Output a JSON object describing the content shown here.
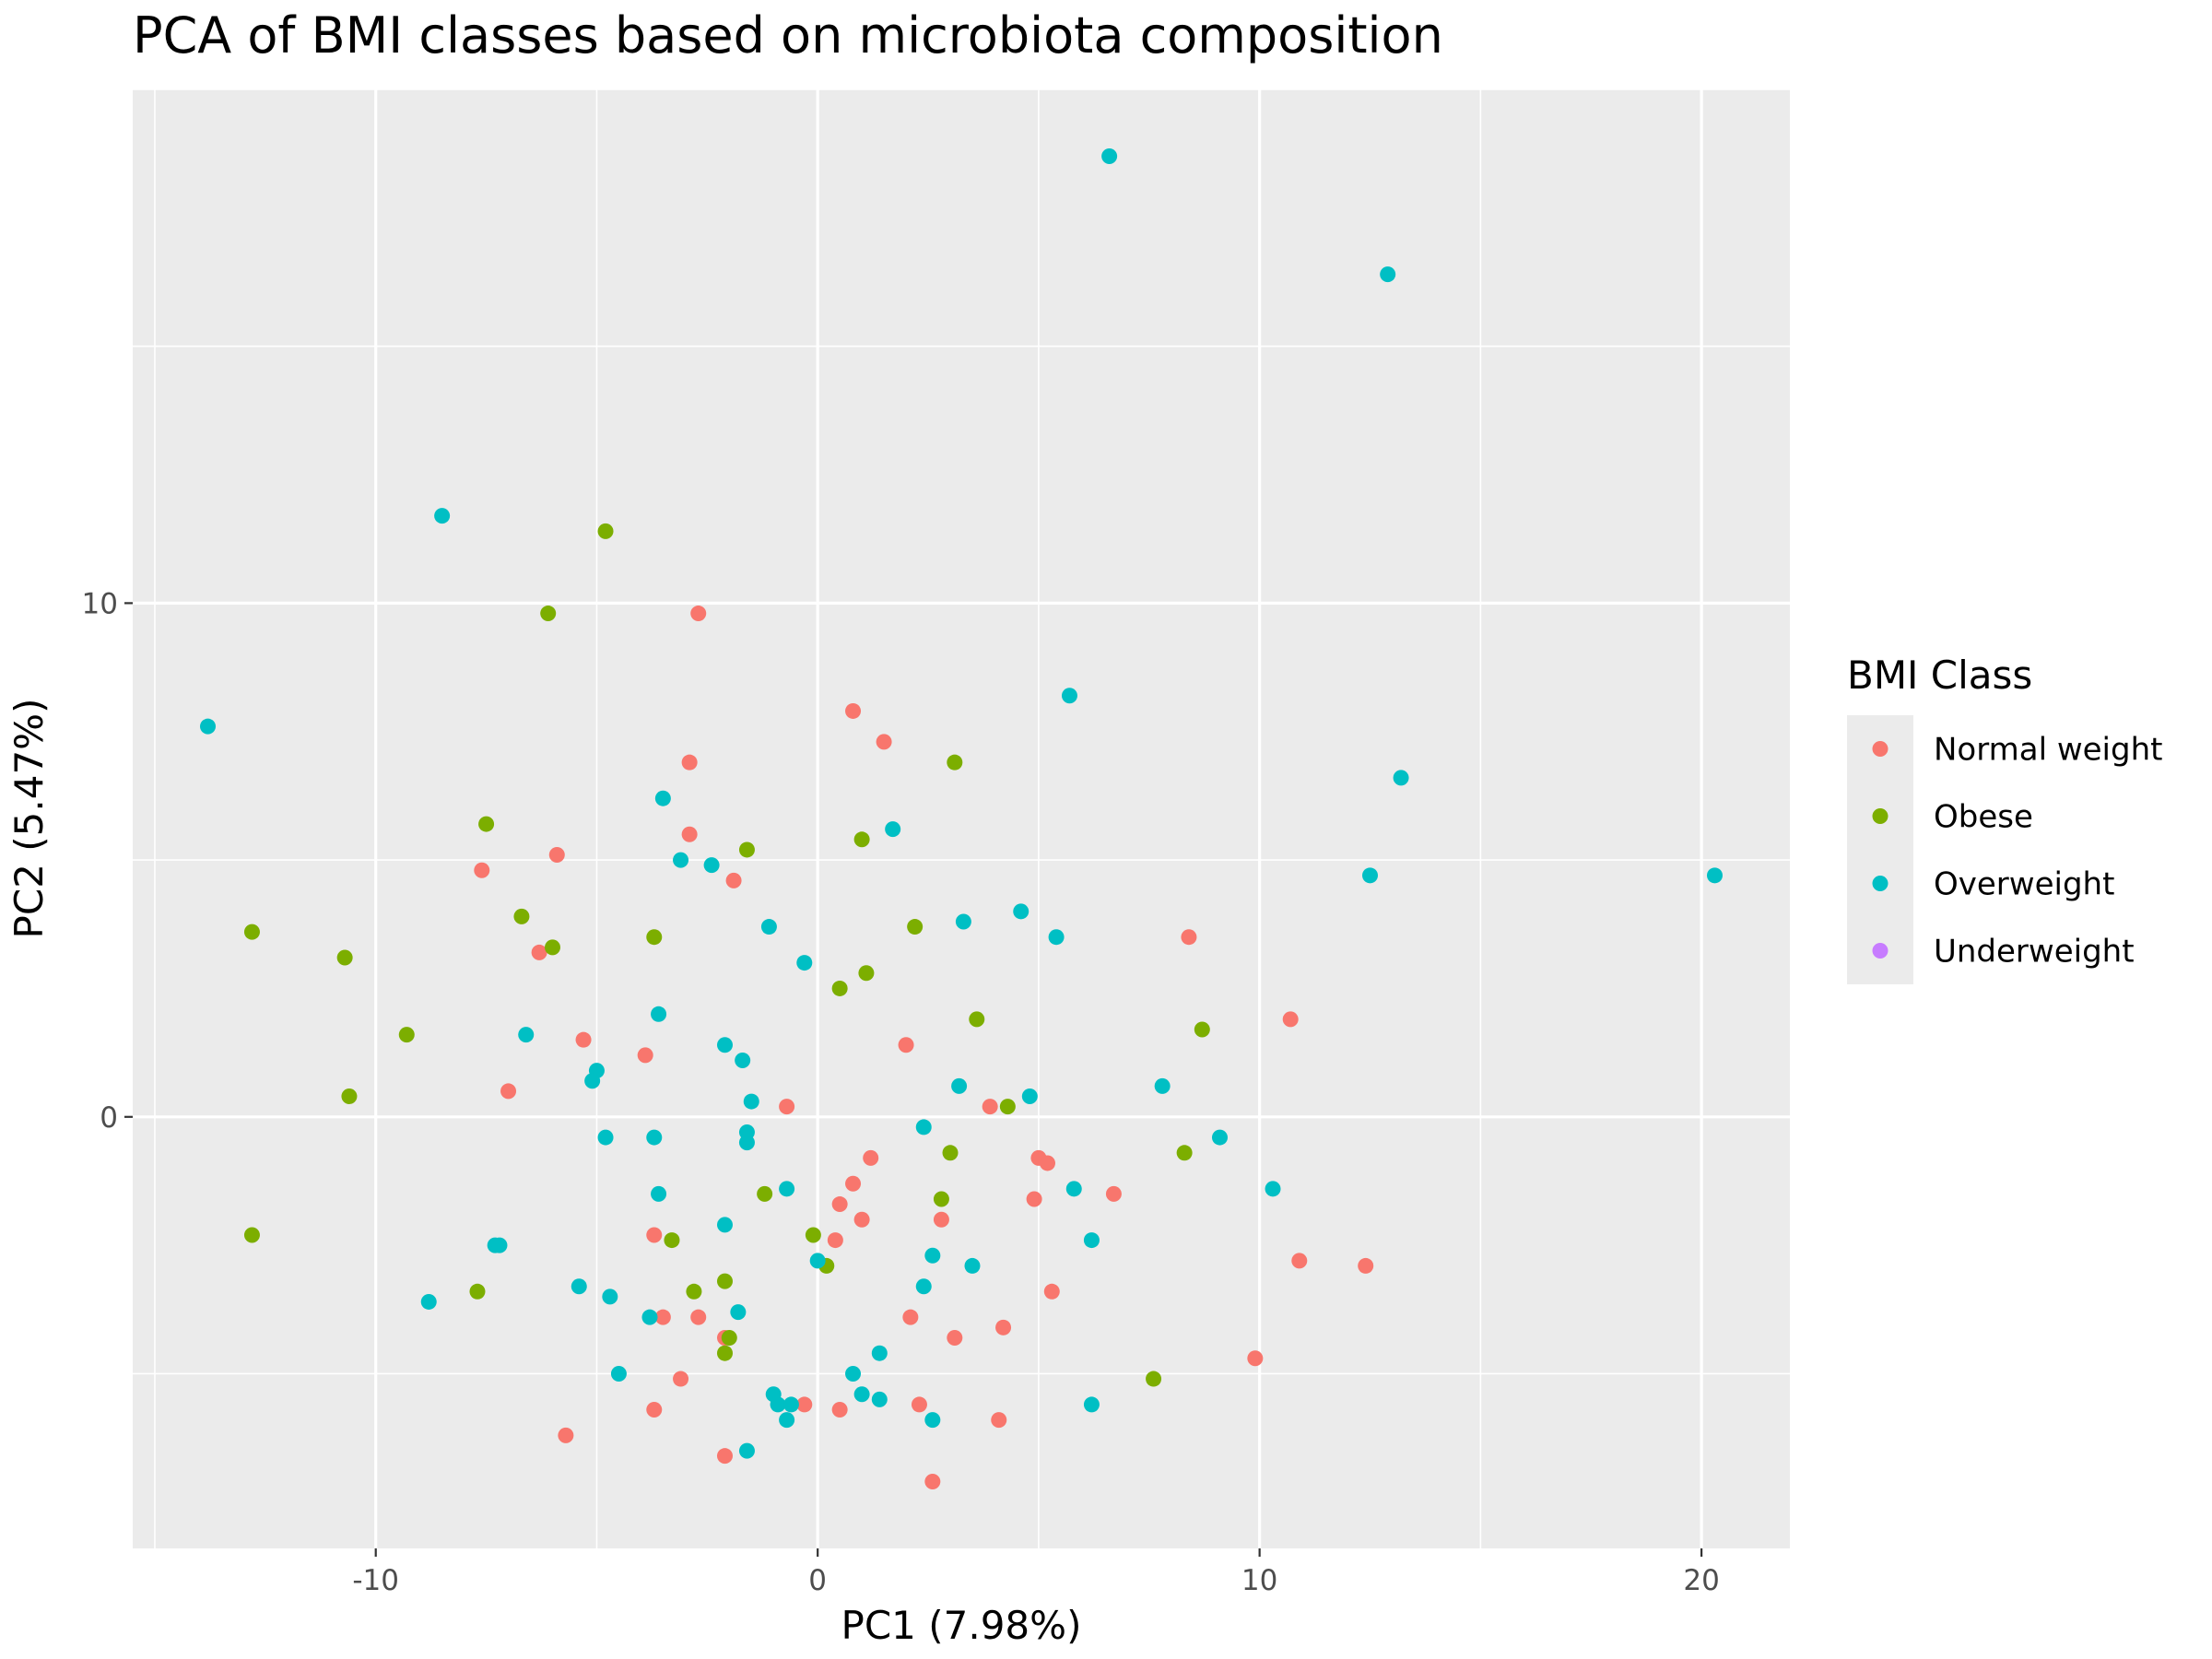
{
  "chart_data": {
    "type": "scatter",
    "title": "PCA of BMI classes based on microbiota composition",
    "xlabel": "PC1 (7.98%)",
    "ylabel": "PC2 (5.47%)",
    "xlim": [
      -15.5,
      22
    ],
    "ylim": [
      -8.4,
      20
    ],
    "x_ticks": [
      -10,
      0,
      10,
      20
    ],
    "y_ticks": [
      0,
      10
    ],
    "grid": true,
    "legend": {
      "title": "BMI Class",
      "position": "right"
    },
    "series": [
      {
        "name": "Normal weight",
        "color": "#F8766D",
        "points": [
          [
            -2.7,
            9.8
          ],
          [
            0.8,
            7.9
          ],
          [
            1.5,
            7.3
          ],
          [
            -2.9,
            6.9
          ],
          [
            -2.9,
            5.5
          ],
          [
            -5.9,
            5.1
          ],
          [
            -7.6,
            4.8
          ],
          [
            -1.9,
            4.6
          ],
          [
            -6.3,
            3.2
          ],
          [
            8.4,
            3.5
          ],
          [
            10.7,
            1.9
          ],
          [
            -5.3,
            1.5
          ],
          [
            -3.9,
            1.2
          ],
          [
            2.0,
            1.4
          ],
          [
            -7.0,
            0.5
          ],
          [
            -0.7,
            0.2
          ],
          [
            3.9,
            0.2
          ],
          [
            5.0,
            -0.8
          ],
          [
            5.2,
            -0.9
          ],
          [
            1.2,
            -0.8
          ],
          [
            0.8,
            -1.3
          ],
          [
            6.7,
            -1.5
          ],
          [
            4.9,
            -1.6
          ],
          [
            0.5,
            -1.7
          ],
          [
            1.0,
            -2.0
          ],
          [
            2.8,
            -2.0
          ],
          [
            0.4,
            -2.4
          ],
          [
            -3.7,
            -2.3
          ],
          [
            10.9,
            -2.8
          ],
          [
            12.4,
            -2.9
          ],
          [
            5.3,
            -3.4
          ],
          [
            -2.7,
            -3.9
          ],
          [
            -3.5,
            -3.9
          ],
          [
            2.1,
            -3.9
          ],
          [
            4.2,
            -4.1
          ],
          [
            -2.1,
            -4.3
          ],
          [
            3.1,
            -4.3
          ],
          [
            9.9,
            -4.7
          ],
          [
            -3.1,
            -5.1
          ],
          [
            -3.7,
            -5.7
          ],
          [
            -0.3,
            -5.6
          ],
          [
            0.5,
            -5.7
          ],
          [
            2.3,
            -5.6
          ],
          [
            4.1,
            -5.9
          ],
          [
            -5.7,
            -6.2
          ],
          [
            -2.1,
            -6.6
          ],
          [
            2.6,
            -7.1
          ]
        ]
      },
      {
        "name": "Obese",
        "color": "#7CAE00",
        "points": [
          [
            -4.8,
            11.4
          ],
          [
            -6.1,
            9.8
          ],
          [
            3.1,
            6.9
          ],
          [
            -7.5,
            5.7
          ],
          [
            1.0,
            5.4
          ],
          [
            -1.6,
            5.2
          ],
          [
            -12.8,
            3.6
          ],
          [
            -6.7,
            3.9
          ],
          [
            -3.7,
            3.5
          ],
          [
            2.2,
            3.7
          ],
          [
            -6.0,
            3.3
          ],
          [
            -10.7,
            3.1
          ],
          [
            1.1,
            2.8
          ],
          [
            0.5,
            2.5
          ],
          [
            3.6,
            1.9
          ],
          [
            8.7,
            1.7
          ],
          [
            -9.3,
            1.6
          ],
          [
            -10.6,
            0.4
          ],
          [
            4.3,
            0.2
          ],
          [
            3.0,
            -0.7
          ],
          [
            8.3,
            -0.7
          ],
          [
            -1.2,
            -1.5
          ],
          [
            2.8,
            -1.6
          ],
          [
            -0.1,
            -2.3
          ],
          [
            -12.8,
            -2.3
          ],
          [
            -3.3,
            -2.4
          ],
          [
            0.2,
            -2.9
          ],
          [
            -7.7,
            -3.4
          ],
          [
            -2.8,
            -3.4
          ],
          [
            -2.1,
            -3.2
          ],
          [
            -2.0,
            -4.3
          ],
          [
            -2.1,
            -4.6
          ],
          [
            7.6,
            -5.1
          ]
        ]
      },
      {
        "name": "Overweight",
        "color": "#00BFC4",
        "points": [
          [
            6.6,
            18.7
          ],
          [
            12.9,
            16.4
          ],
          [
            -8.5,
            11.7
          ],
          [
            -13.8,
            7.6
          ],
          [
            5.7,
            8.2
          ],
          [
            13.2,
            6.6
          ],
          [
            -3.5,
            6.2
          ],
          [
            1.7,
            5.6
          ],
          [
            -3.1,
            5.0
          ],
          [
            -2.4,
            4.9
          ],
          [
            12.5,
            4.7
          ],
          [
            20.3,
            4.7
          ],
          [
            4.6,
            4.0
          ],
          [
            -1.1,
            3.7
          ],
          [
            3.3,
            3.8
          ],
          [
            5.4,
            3.5
          ],
          [
            -0.3,
            3.0
          ],
          [
            -3.6,
            2.0
          ],
          [
            -6.6,
            1.6
          ],
          [
            -2.1,
            1.4
          ],
          [
            -1.7,
            1.1
          ],
          [
            -5.0,
            0.9
          ],
          [
            -5.1,
            0.7
          ],
          [
            3.2,
            0.6
          ],
          [
            7.8,
            0.6
          ],
          [
            4.8,
            0.4
          ],
          [
            -1.5,
            0.3
          ],
          [
            2.4,
            -0.2
          ],
          [
            -4.8,
            -0.4
          ],
          [
            -3.7,
            -0.4
          ],
          [
            -1.6,
            -0.3
          ],
          [
            -1.6,
            -0.5
          ],
          [
            9.1,
            -0.4
          ],
          [
            -3.6,
            -1.5
          ],
          [
            -0.7,
            -1.4
          ],
          [
            5.8,
            -1.4
          ],
          [
            10.3,
            -1.4
          ],
          [
            -2.1,
            -2.1
          ],
          [
            -7.3,
            -2.5
          ],
          [
            -7.2,
            -2.5
          ],
          [
            6.2,
            -2.4
          ],
          [
            2.6,
            -2.7
          ],
          [
            0.0,
            -2.8
          ],
          [
            3.5,
            -2.9
          ],
          [
            -8.8,
            -3.6
          ],
          [
            -5.4,
            -3.3
          ],
          [
            -4.7,
            -3.5
          ],
          [
            2.4,
            -3.3
          ],
          [
            -3.8,
            -3.9
          ],
          [
            -1.8,
            -3.8
          ],
          [
            -4.5,
            -5.0
          ],
          [
            1.4,
            -4.6
          ],
          [
            0.8,
            -5.0
          ],
          [
            -1.0,
            -5.4
          ],
          [
            1.0,
            -5.4
          ],
          [
            1.4,
            -5.5
          ],
          [
            6.2,
            -5.6
          ],
          [
            -0.9,
            -5.6
          ],
          [
            -0.6,
            -5.6
          ],
          [
            -0.7,
            -5.9
          ],
          [
            2.6,
            -5.9
          ],
          [
            -1.6,
            -6.5
          ]
        ]
      },
      {
        "name": "Underweight",
        "color": "#C77CFF",
        "points": []
      }
    ]
  }
}
